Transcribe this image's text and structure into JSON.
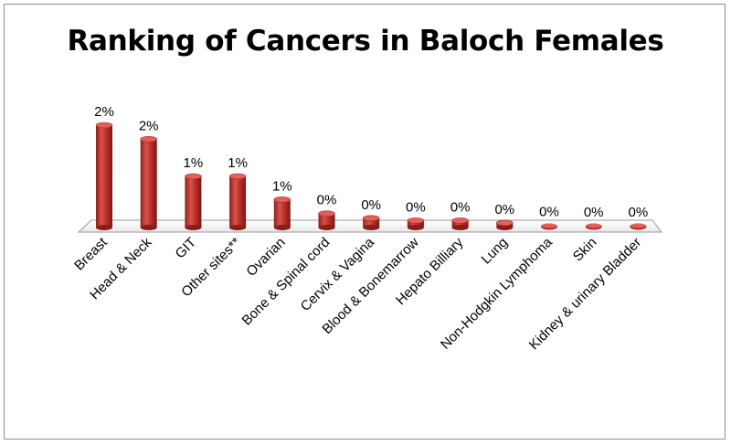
{
  "chart_data": {
    "type": "bar",
    "title": "Ranking of Cancers in Baloch Females",
    "categories": [
      "Breast",
      "Head & Neck",
      "GIT",
      "Other sites**",
      "Ovarian",
      "Bone & Spinal cord",
      "Cervix & Vagina",
      "Blood & Bonemarrow",
      "Hepato Billiary",
      "Lung",
      "Non-Hodgkin Lymphoma",
      "Skin",
      "Kidney & urinary Bladder"
    ],
    "values": [
      2.2,
      1.9,
      1.1,
      1.1,
      0.6,
      0.3,
      0.2,
      0.15,
      0.15,
      0.1,
      0.05,
      0.02,
      0.01
    ],
    "data_labels": [
      "2%",
      "2%",
      "1%",
      "1%",
      "1%",
      "0%",
      "0%",
      "0%",
      "0%",
      "0%",
      "0%",
      "0%",
      "0%"
    ],
    "bar_color": "#c0312d",
    "xlabel": "",
    "ylabel": "",
    "grid": false,
    "legend": "none"
  }
}
